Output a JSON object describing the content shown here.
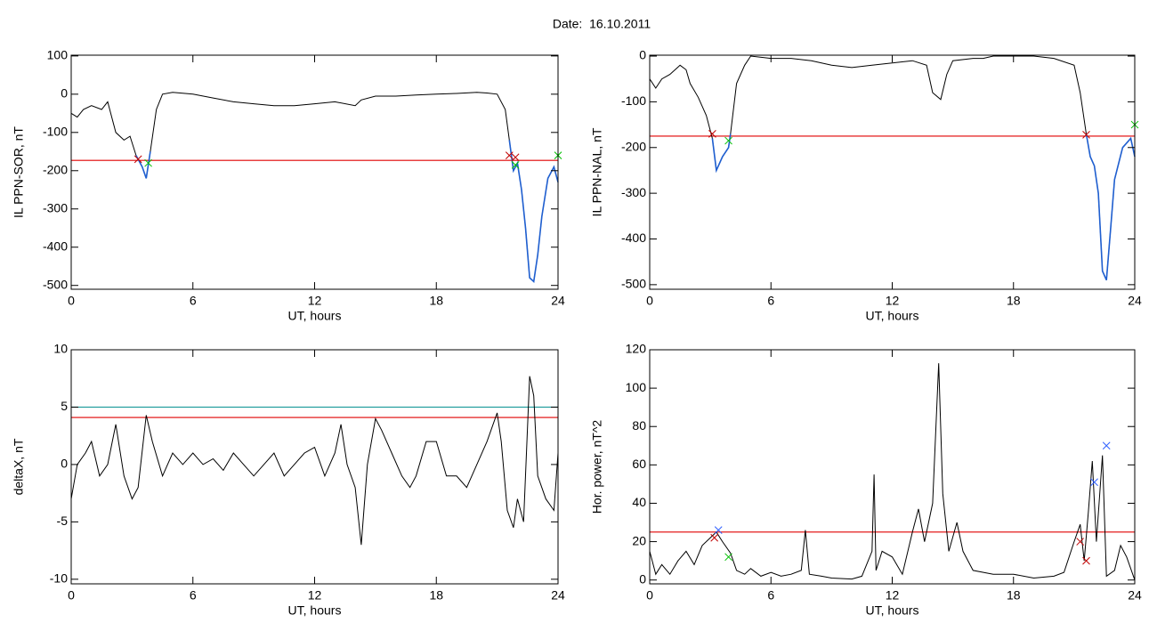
{
  "title": "Date:  16.10.2011",
  "chart_data": [
    {
      "type": "line",
      "ylabel": "IL PPN-SOR, nT",
      "xlabel": "UT, hours",
      "xlim": [
        0,
        24
      ],
      "xticks": [
        0,
        6,
        12,
        18,
        24
      ],
      "ylim": [
        -510,
        102
      ],
      "yticks": [
        100,
        0,
        -100,
        -200,
        -300,
        -400,
        -500
      ],
      "x": [
        0,
        0.3,
        0.6,
        1,
        1.5,
        1.8,
        2.2,
        2.6,
        2.9,
        3.2,
        3.5,
        3.7,
        3.9,
        4.2,
        4.5,
        5,
        6,
        7,
        8,
        9,
        10,
        11,
        12,
        13,
        14,
        14.3,
        15,
        16,
        17,
        18,
        19,
        20,
        20.5,
        21,
        21.4,
        21.6,
        21.8,
        22,
        22.2,
        22.4,
        22.6,
        22.8,
        23,
        23.2,
        23.5,
        23.8,
        24
      ],
      "series": [
        {
          "color": "#000000",
          "values": [
            -50,
            -60,
            -40,
            -30,
            -40,
            -20,
            -100,
            -120,
            -110,
            -160,
            -190,
            -220,
            -150,
            -40,
            0,
            5,
            0,
            -10,
            -20,
            -25,
            -30,
            -30,
            -25,
            -20,
            -30,
            -15,
            -5,
            -5,
            -2,
            0,
            2,
            5,
            3,
            0,
            -40,
            -120,
            -200,
            -180,
            -250,
            -350,
            -480,
            -490,
            -420,
            -320,
            -220,
            -190,
            -230
          ]
        },
        {
          "color": "#1f5fd0",
          "values": [
            null,
            null,
            null,
            null,
            null,
            null,
            null,
            null,
            null,
            -160,
            -190,
            -220,
            -150,
            null,
            null,
            null,
            null,
            null,
            null,
            null,
            null,
            null,
            null,
            null,
            null,
            null,
            null,
            null,
            null,
            null,
            null,
            null,
            null,
            null,
            null,
            -120,
            -200,
            -180,
            -250,
            -350,
            -480,
            -490,
            -420,
            -320,
            -220,
            -190,
            -230
          ]
        }
      ],
      "hlines": [
        {
          "value": -173,
          "color": "#e00000"
        }
      ],
      "markers": [
        {
          "x": 3.3,
          "y": -170,
          "color": "#c00000"
        },
        {
          "x": 21.6,
          "y": -160,
          "color": "#c00000"
        },
        {
          "x": 21.9,
          "y": -165,
          "color": "#c00000"
        },
        {
          "x": 3.8,
          "y": -180,
          "color": "#00c000"
        },
        {
          "x": 21.9,
          "y": -185,
          "color": "#00c000"
        },
        {
          "x": 24,
          "y": -160,
          "color": "#00c000"
        }
      ]
    },
    {
      "type": "line",
      "ylabel": "IL PPN-NAL, nT",
      "xlabel": "UT, hours",
      "xlim": [
        0,
        24
      ],
      "xticks": [
        0,
        6,
        12,
        18,
        24
      ],
      "ylim": [
        -510,
        2
      ],
      "yticks": [
        0,
        -100,
        -200,
        -300,
        -400,
        -500
      ],
      "x": [
        0,
        0.3,
        0.6,
        1,
        1.5,
        1.8,
        2,
        2.4,
        2.8,
        3.1,
        3.3,
        3.6,
        3.9,
        4,
        4.3,
        4.7,
        5,
        6,
        7,
        8,
        9,
        10,
        11,
        12,
        13,
        13.7,
        14,
        14.4,
        14.7,
        15,
        16,
        16.5,
        17,
        18,
        19,
        20,
        21,
        21.3,
        21.6,
        21.8,
        22,
        22.2,
        22.4,
        22.6,
        22.8,
        23,
        23.4,
        23.8,
        24
      ],
      "series": [
        {
          "color": "#000000",
          "values": [
            -50,
            -70,
            -50,
            -40,
            -20,
            -30,
            -60,
            -90,
            -130,
            -180,
            -250,
            -220,
            -200,
            -170,
            -60,
            -20,
            0,
            -5,
            -5,
            -10,
            -20,
            -25,
            -20,
            -15,
            -10,
            -20,
            -80,
            -95,
            -40,
            -10,
            -5,
            -5,
            0,
            0,
            0,
            -5,
            -20,
            -80,
            -170,
            -220,
            -240,
            -300,
            -470,
            -490,
            -380,
            -270,
            -200,
            -180,
            -220
          ]
        },
        {
          "color": "#1f5fd0",
          "values": [
            null,
            null,
            null,
            null,
            null,
            null,
            null,
            null,
            null,
            -180,
            -250,
            -220,
            -200,
            -170,
            null,
            null,
            null,
            null,
            null,
            null,
            null,
            null,
            null,
            null,
            null,
            null,
            null,
            null,
            null,
            null,
            null,
            null,
            null,
            null,
            null,
            null,
            null,
            null,
            -170,
            -220,
            -240,
            -300,
            -470,
            -490,
            -380,
            -270,
            -200,
            -180,
            -220
          ]
        }
      ],
      "hlines": [
        {
          "value": -175,
          "color": "#e00000"
        }
      ],
      "markers": [
        {
          "x": 3.1,
          "y": -170,
          "color": "#c00000"
        },
        {
          "x": 21.6,
          "y": -172,
          "color": "#c00000"
        },
        {
          "x": 3.9,
          "y": -185,
          "color": "#00c000"
        },
        {
          "x": 24,
          "y": -150,
          "color": "#00c000"
        }
      ]
    },
    {
      "type": "line",
      "ylabel": "deltaX, nT",
      "xlabel": "UT, hours",
      "xlim": [
        0,
        24
      ],
      "xticks": [
        0,
        6,
        12,
        18,
        24
      ],
      "ylim": [
        -10.4,
        10
      ],
      "yticks": [
        10,
        5,
        0,
        -5,
        -10
      ],
      "x": [
        0,
        0.3,
        0.7,
        1,
        1.4,
        1.8,
        2.2,
        2.6,
        3,
        3.3,
        3.7,
        4,
        4.5,
        5,
        5.5,
        6,
        6.5,
        7,
        7.5,
        8,
        8.5,
        9,
        9.5,
        10,
        10.5,
        11,
        11.5,
        12,
        12.5,
        13,
        13.3,
        13.6,
        14,
        14.3,
        14.6,
        15,
        15.3,
        15.8,
        16.3,
        16.7,
        17,
        17.5,
        18,
        18.5,
        19,
        19.5,
        20,
        20.5,
        21,
        21.2,
        21.5,
        21.8,
        22,
        22.3,
        22.6,
        22.8,
        23,
        23.4,
        23.8,
        24
      ],
      "series": [
        {
          "color": "#000000",
          "values": [
            -3,
            0,
            1,
            2,
            -1,
            0,
            3.5,
            -1,
            -3,
            -2,
            4.3,
            2,
            -1,
            1,
            0,
            1,
            0,
            0.5,
            -0.5,
            1,
            0,
            -1,
            0,
            1,
            -1,
            0,
            1,
            1.5,
            -1,
            1,
            3.5,
            0,
            -2,
            -7,
            0,
            4,
            3,
            1,
            -1,
            -2,
            -1,
            2,
            2,
            -1,
            -1,
            -2,
            0,
            2,
            4.5,
            2,
            -4,
            -5.5,
            -3,
            -5,
            7.7,
            6,
            -1,
            -3,
            -4,
            1
          ]
        }
      ],
      "hlines": [
        {
          "value": 5,
          "color": "#1a9a9a"
        },
        {
          "value": 4.1,
          "color": "#e00000"
        }
      ],
      "markers": []
    },
    {
      "type": "line",
      "ylabel": "Hor. power, nT^2",
      "xlabel": "UT, hours",
      "xlim": [
        0,
        24
      ],
      "xticks": [
        0,
        6,
        12,
        18,
        24
      ],
      "ylim": [
        -2,
        120
      ],
      "yticks": [
        0,
        20,
        40,
        60,
        80,
        100,
        120
      ],
      "x": [
        0,
        0.3,
        0.6,
        1,
        1.4,
        1.8,
        2.2,
        2.6,
        3,
        3.3,
        3.6,
        4,
        4.3,
        4.7,
        5,
        5.5,
        6,
        6.5,
        7,
        7.5,
        7.7,
        7.9,
        8.5,
        9,
        10,
        10.5,
        11,
        11.1,
        11.2,
        11.5,
        12,
        12.5,
        13,
        13.3,
        13.6,
        14,
        14.3,
        14.5,
        14.8,
        15.2,
        15.5,
        16,
        17,
        18,
        19,
        20,
        20.5,
        21,
        21.3,
        21.5,
        21.7,
        21.9,
        22.1,
        22.4,
        22.6,
        23,
        23.3,
        23.6,
        24
      ],
      "series": [
        {
          "color": "#000000",
          "values": [
            15,
            3,
            8,
            3,
            10,
            15,
            8,
            18,
            22,
            25,
            20,
            14,
            5,
            3,
            6,
            2,
            4,
            2,
            3,
            5,
            26,
            3,
            2,
            1,
            0.5,
            2,
            15,
            55,
            5,
            15,
            12,
            3,
            25,
            37,
            20,
            40,
            113,
            45,
            15,
            30,
            15,
            5,
            3,
            3,
            1,
            2,
            4,
            20,
            29,
            10,
            35,
            62,
            20,
            65,
            2,
            5,
            18,
            12,
            0
          ]
        }
      ],
      "hlines": [
        {
          "value": 25,
          "color": "#e00000"
        }
      ],
      "markers": [
        {
          "x": 3.2,
          "y": 22,
          "color": "#c00000"
        },
        {
          "x": 21.3,
          "y": 20,
          "color": "#c00000"
        },
        {
          "x": 21.6,
          "y": 10,
          "color": "#c00000"
        },
        {
          "x": 3.4,
          "y": 26,
          "color": "#3060ff"
        },
        {
          "x": 22,
          "y": 51,
          "color": "#3060ff"
        },
        {
          "x": 22.6,
          "y": 70,
          "color": "#3060ff"
        },
        {
          "x": 3.9,
          "y": 12,
          "color": "#00c000"
        }
      ]
    }
  ]
}
